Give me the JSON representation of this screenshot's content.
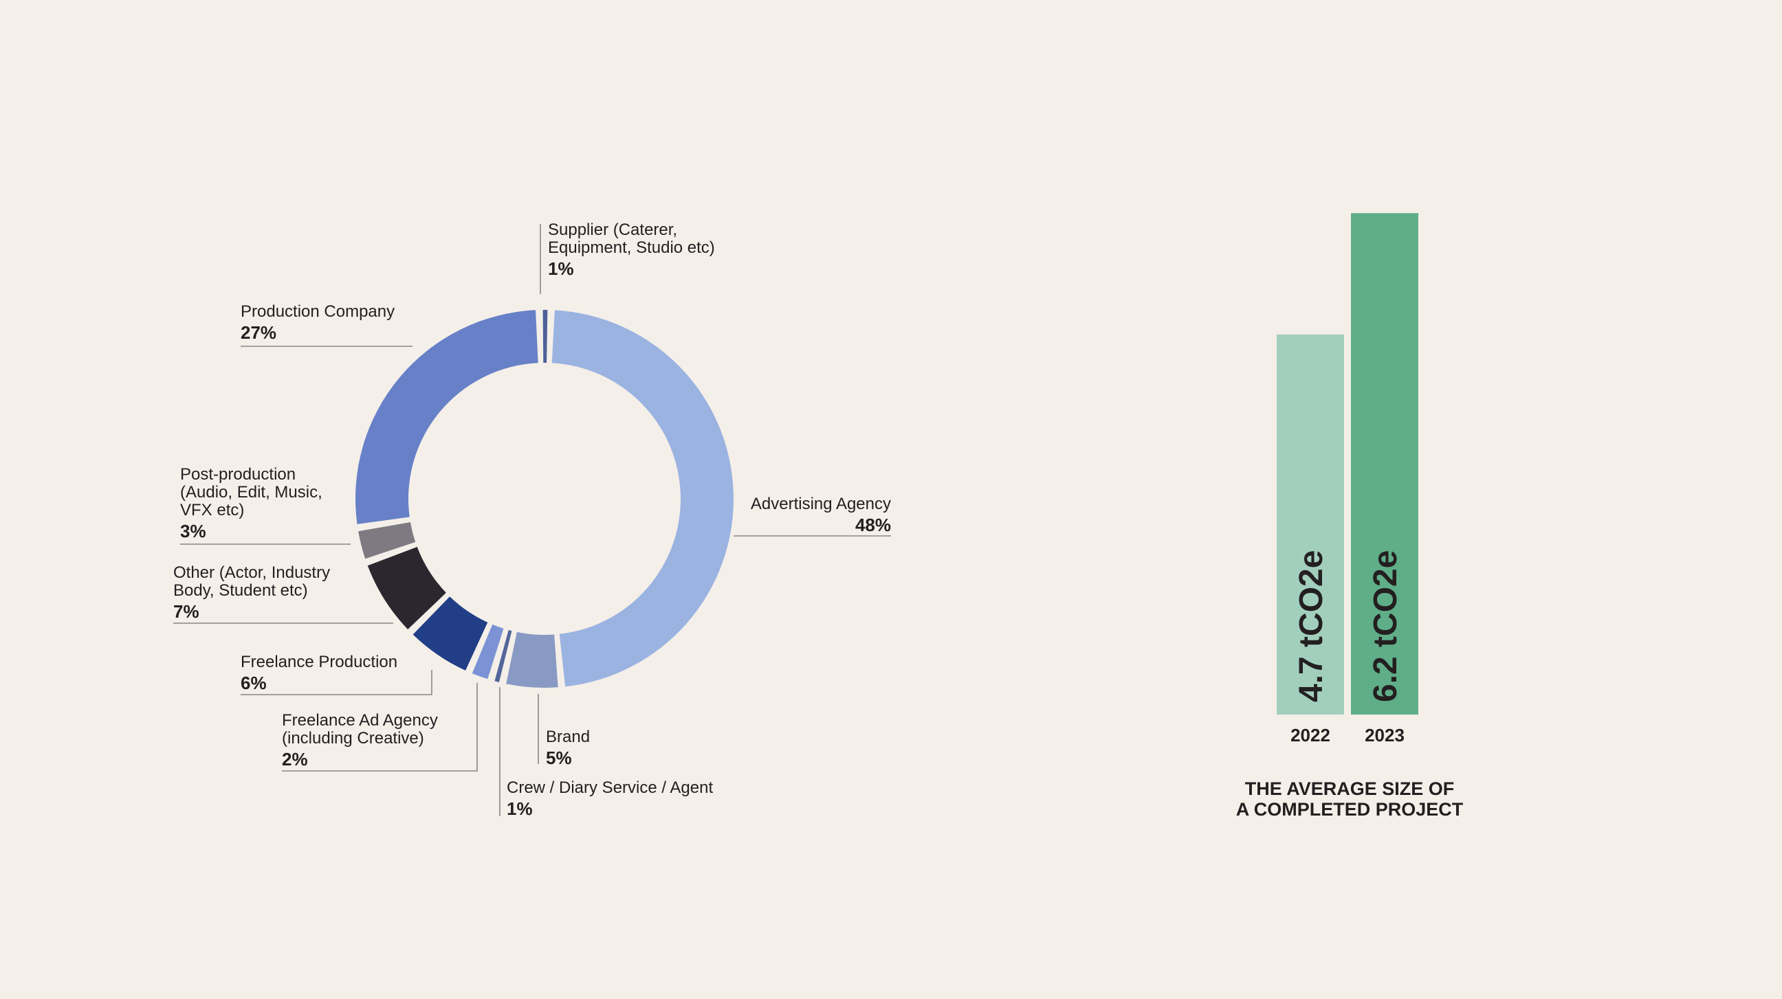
{
  "colors": {
    "background": "#f4efe9",
    "text": "#231f20",
    "leader_line": "#8a8583",
    "bar_2022": "#a2cfbd",
    "bar_2023": "#5fae88"
  },
  "chart_data": [
    {
      "type": "pie",
      "variant": "donut",
      "categories": [
        "Supplier (Caterer, Equipment, Studio etc)",
        "Advertising Agency",
        "Brand",
        "Crew / Diary Service / Agent",
        "Freelance Ad Agency (including Creative)",
        "Freelance Production",
        "Other (Actor, Industry Body, Student etc)",
        "Post-production (Audio, Edit, Music, VFX etc)",
        "Production Company"
      ],
      "values": [
        1,
        48,
        5,
        1,
        2,
        6,
        7,
        3,
        27
      ],
      "value_labels": [
        "1%",
        "48%",
        "5%",
        "1%",
        "2%",
        "6%",
        "7%",
        "3%",
        "27%"
      ],
      "colors": [
        "#4d6199",
        "#9bb3e1",
        "#8899c4",
        "#53659b",
        "#7b93d5",
        "#213e86",
        "#2a282e",
        "#7e7a82",
        "#6780c8"
      ],
      "label_lines": [
        [
          "Supplier (Caterer,",
          "Equipment, Studio etc)"
        ],
        [
          "Advertising Agency"
        ],
        [
          "Brand"
        ],
        [
          "Crew / Diary Service / Agent"
        ],
        [
          "Freelance Ad Agency",
          "(including Creative)"
        ],
        [
          "Freelance Production"
        ],
        [
          "Other (Actor, Industry",
          "Body, Student etc)"
        ],
        [
          "Post-production",
          "(Audio, Edit, Music,",
          "VFX etc)"
        ],
        [
          "Production Company"
        ]
      ]
    },
    {
      "type": "bar",
      "categories": [
        "2022",
        "2023"
      ],
      "values": [
        4.7,
        6.2
      ],
      "value_labels": [
        "4.7 tCO2e",
        "6.2 tCO2e"
      ],
      "colors": [
        "#a2cfbd",
        "#5fae88"
      ],
      "title_lines": [
        "THE AVERAGE SIZE OF",
        "A COMPLETED PROJECT"
      ],
      "grid": false
    }
  ]
}
